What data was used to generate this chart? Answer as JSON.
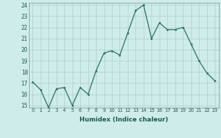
{
  "x": [
    0,
    1,
    2,
    3,
    4,
    5,
    6,
    7,
    8,
    9,
    10,
    11,
    12,
    13,
    14,
    15,
    16,
    17,
    18,
    19,
    20,
    21,
    22,
    23
  ],
  "y": [
    17.1,
    16.4,
    14.8,
    16.5,
    16.6,
    15.0,
    16.6,
    16.0,
    18.1,
    19.7,
    19.9,
    19.5,
    21.5,
    23.5,
    24.0,
    21.0,
    22.4,
    21.8,
    21.8,
    22.0,
    20.5,
    19.0,
    17.9,
    17.2
  ],
  "xlabel": "Humidex (Indice chaleur)",
  "ylim": [
    15,
    24
  ],
  "xlim": [
    -0.5,
    23.5
  ],
  "yticks": [
    15,
    16,
    17,
    18,
    19,
    20,
    21,
    22,
    23,
    24
  ],
  "xticks": [
    0,
    1,
    2,
    3,
    4,
    5,
    6,
    7,
    8,
    9,
    10,
    11,
    12,
    13,
    14,
    15,
    16,
    17,
    18,
    19,
    20,
    21,
    22,
    23
  ],
  "line_color": "#2d7a6a",
  "marker_color": "#2d7a6a",
  "bg_color": "#ceecea",
  "grid_color": "#aacfcc",
  "marker": "s",
  "markersize": 2.0,
  "linewidth": 1.0
}
